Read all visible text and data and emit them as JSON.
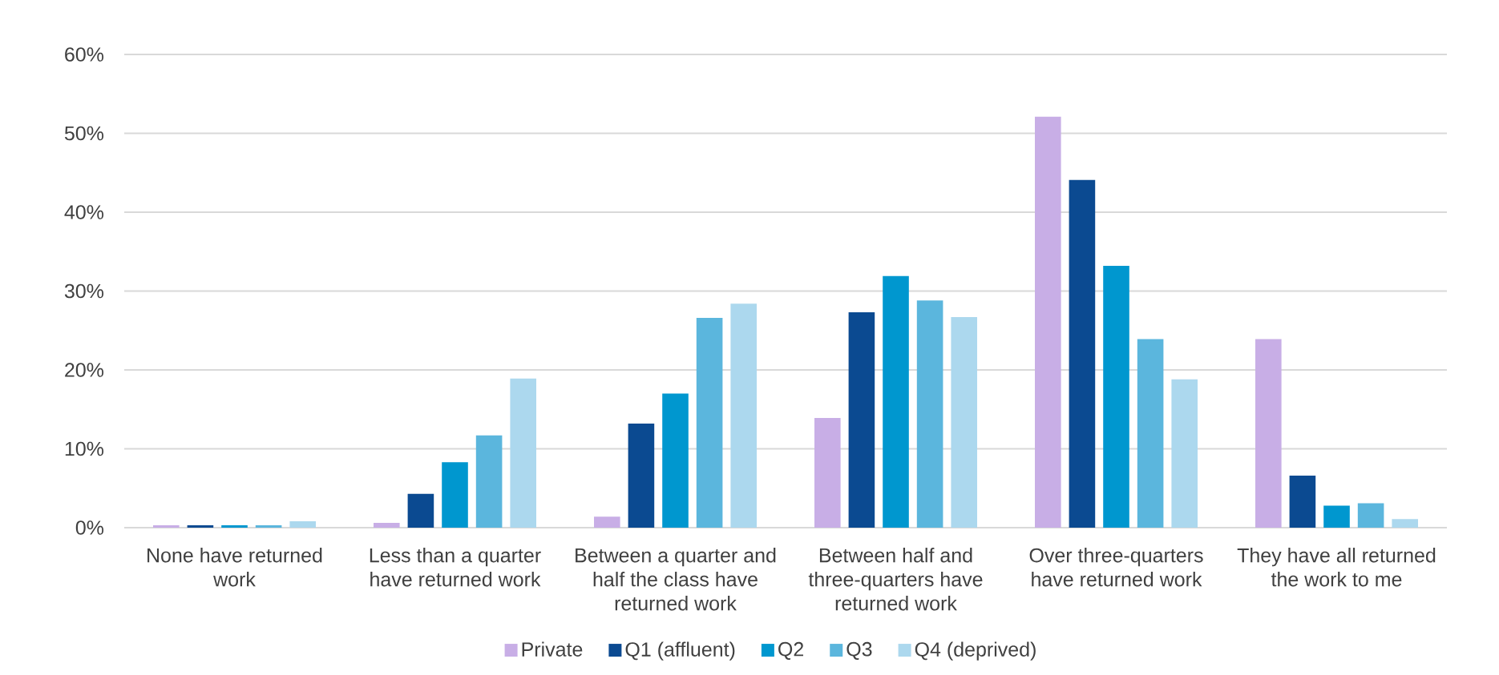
{
  "chart_data": {
    "type": "bar",
    "categories": [
      "None have returned work",
      "Less than a quarter have returned work",
      "Between a quarter and half the class have returned work",
      "Between half and three-quarters have returned work",
      "Over three-quarters have returned work",
      "They have all returned the work to me"
    ],
    "series": [
      {
        "name": "Private",
        "color": "#c8aee6",
        "values": [
          0.3,
          0.6,
          1.4,
          13.9,
          52.1,
          23.9
        ]
      },
      {
        "name": "Q1 (affluent)",
        "color": "#0b4a91",
        "values": [
          0.3,
          4.3,
          13.2,
          27.3,
          44.1,
          6.6
        ]
      },
      {
        "name": "Q2",
        "color": "#0097cf",
        "values": [
          0.3,
          8.3,
          17.0,
          31.9,
          33.2,
          2.8
        ]
      },
      {
        "name": "Q3",
        "color": "#5bb6dd",
        "values": [
          0.3,
          11.7,
          26.6,
          28.8,
          23.9,
          3.1
        ]
      },
      {
        "name": "Q4 (deprived)",
        "color": "#acd8ee",
        "values": [
          0.8,
          18.9,
          28.4,
          26.7,
          18.8,
          1.1
        ]
      }
    ],
    "ylim": [
      0,
      60
    ],
    "yticks": [
      {
        "value": 0,
        "label": "0%"
      },
      {
        "value": 10,
        "label": "10%"
      },
      {
        "value": 20,
        "label": "20%"
      },
      {
        "value": 30,
        "label": "30%"
      },
      {
        "value": 40,
        "label": "40%"
      },
      {
        "value": 50,
        "label": "50%"
      },
      {
        "value": 60,
        "label": "60%"
      }
    ],
    "grid": "y",
    "legend": "bottom"
  }
}
